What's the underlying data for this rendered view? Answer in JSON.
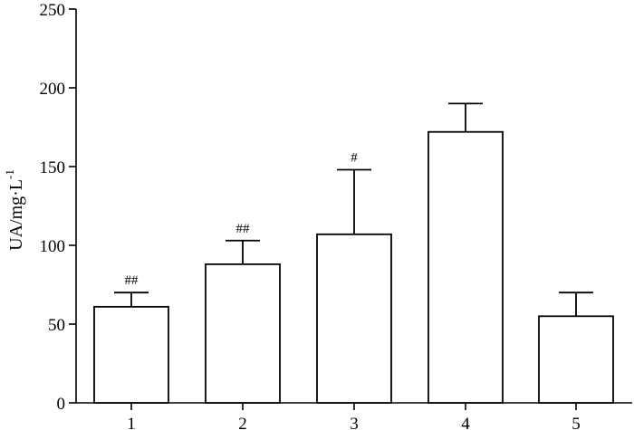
{
  "chart_data": {
    "type": "bar",
    "categories": [
      "1",
      "2",
      "3",
      "4",
      "5"
    ],
    "values": [
      61,
      88,
      107,
      172,
      55
    ],
    "errors": [
      9,
      15,
      41,
      18,
      15
    ],
    "annotations": [
      "##",
      "##",
      "#",
      "",
      ""
    ],
    "ylabel_main": "UA/mg·L",
    "ylabel_sup": "-1",
    "xlabel": "",
    "ylim": [
      0,
      250
    ],
    "yticks": [
      0,
      50,
      100,
      150,
      200,
      250
    ],
    "grid": false,
    "legend": "none",
    "colors": {
      "bar_fill": "#ffffff",
      "stroke": "#000000"
    }
  }
}
